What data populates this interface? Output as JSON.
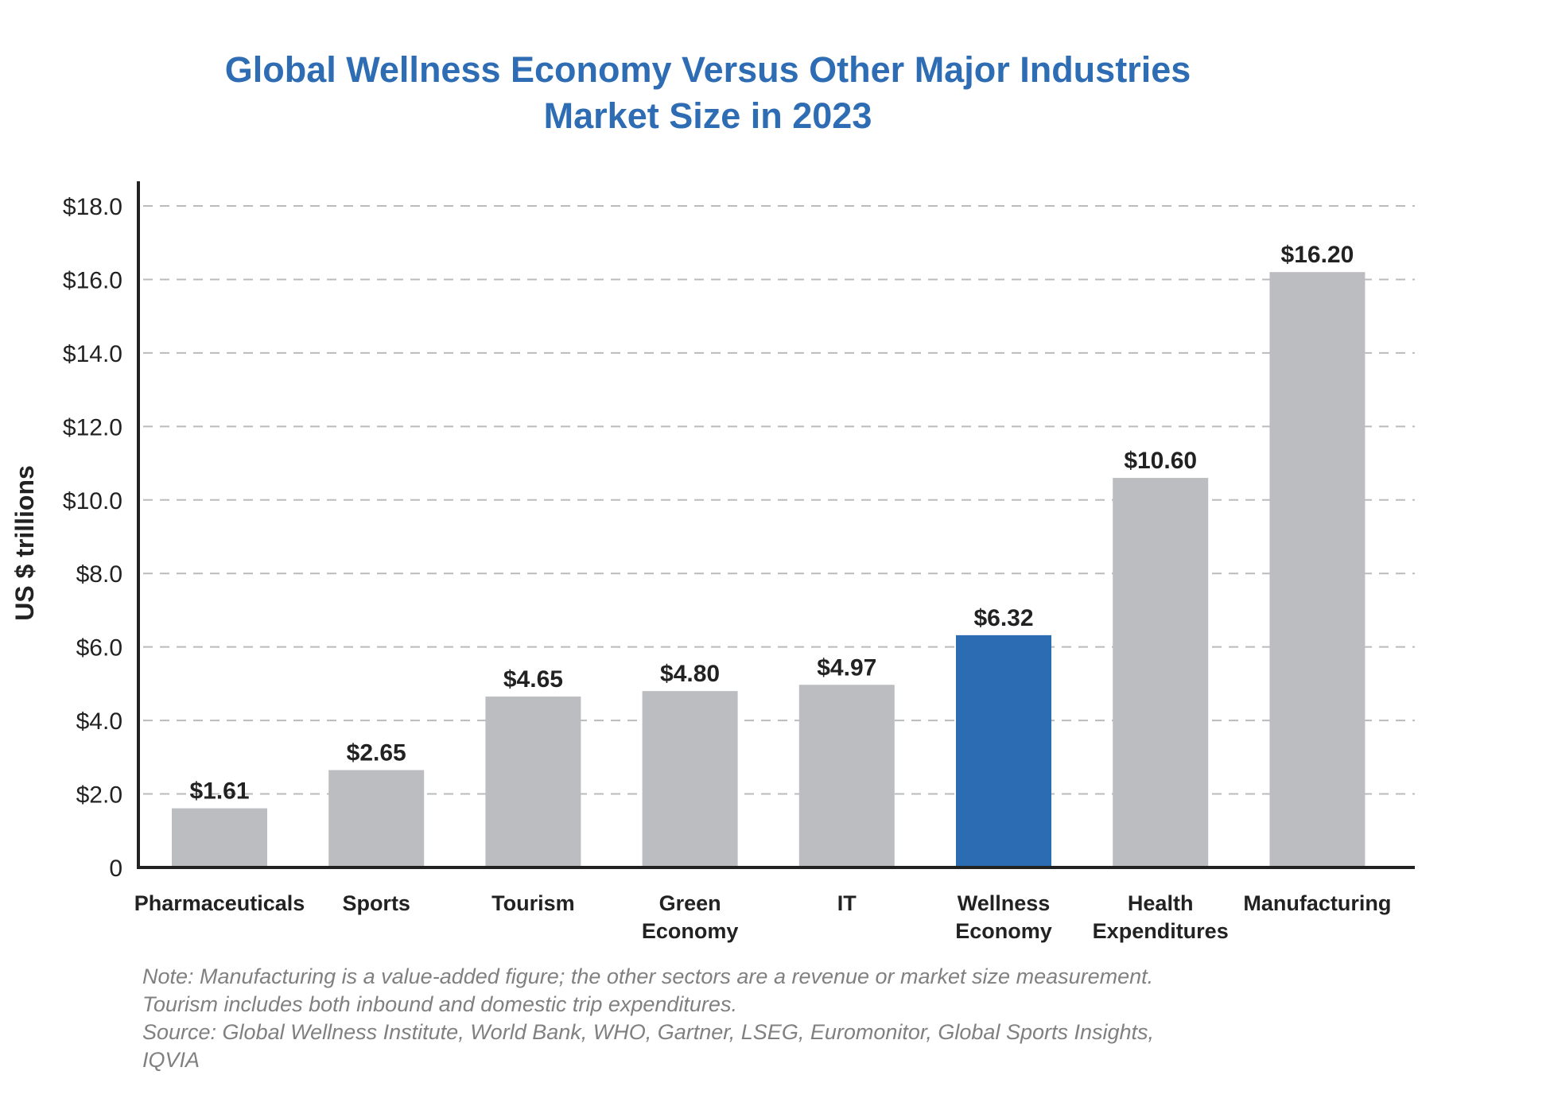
{
  "chart_data": {
    "type": "bar",
    "title": "Global Wellness Economy Versus Other Major Industries",
    "subtitle": "Market Size in 2023",
    "ylabel": "US $ trillions",
    "xlabel": "",
    "ylim": [
      0,
      18
    ],
    "yticks": [
      0,
      2,
      4,
      6,
      8,
      10,
      12,
      14,
      16,
      18
    ],
    "ytick_labels": [
      "0",
      "$2.0",
      "$4.0",
      "$6.0",
      "$8.0",
      "$10.0",
      "$12.0",
      "$14.0",
      "$16.0",
      "$18.0"
    ],
    "grid": "horizontal dashed",
    "categories": [
      [
        "Pharmaceuticals"
      ],
      [
        "Sports"
      ],
      [
        "Tourism"
      ],
      [
        "Green",
        "Economy"
      ],
      [
        "IT"
      ],
      [
        "Wellness",
        "Economy"
      ],
      [
        "Health",
        "Expenditures"
      ],
      [
        "Manufacturing"
      ]
    ],
    "values": [
      1.61,
      2.65,
      4.65,
      4.8,
      4.97,
      6.32,
      10.6,
      16.2
    ],
    "data_labels": [
      "$1.61",
      "$2.65",
      "$4.65",
      "$4.80",
      "$4.97",
      "$6.32",
      "$10.60",
      "$16.20"
    ],
    "highlight_index": 5,
    "colors": {
      "bar": "#bcbdc0",
      "highlight": "#2b6cb3",
      "title": "#2e6db4"
    }
  },
  "notes": [
    "Note: Manufacturing is a value-added figure; the other sectors are a revenue or market size measurement.",
    "Tourism includes both inbound and domestic trip expenditures.",
    "Source: Global Wellness Institute, World Bank, WHO, Gartner, LSEG, Euromonitor, Global Sports Insights,",
    "IQVIA"
  ]
}
